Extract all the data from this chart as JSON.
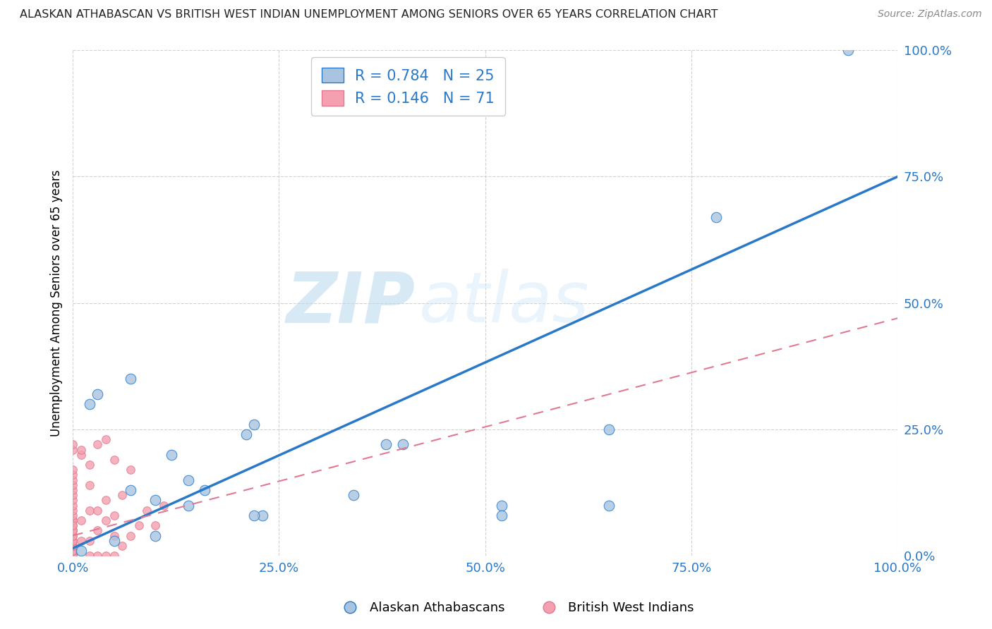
{
  "title": "ALASKAN ATHABASCAN VS BRITISH WEST INDIAN UNEMPLOYMENT AMONG SENIORS OVER 65 YEARS CORRELATION CHART",
  "source": "Source: ZipAtlas.com",
  "ylabel": "Unemployment Among Seniors over 65 years",
  "watermark_zip": "ZIP",
  "watermark_atlas": "atlas",
  "xlim": [
    0,
    1.0
  ],
  "ylim": [
    0,
    1.0
  ],
  "xticks": [
    0.0,
    0.25,
    0.5,
    0.75,
    1.0
  ],
  "yticks": [
    0.0,
    0.25,
    0.5,
    0.75,
    1.0
  ],
  "xticklabels": [
    "0.0%",
    "25.0%",
    "50.0%",
    "75.0%",
    "100.0%"
  ],
  "yticklabels": [
    "0.0%",
    "25.0%",
    "50.0%",
    "75.0%",
    "100.0%"
  ],
  "blue_R": "0.784",
  "blue_N": "25",
  "pink_R": "0.146",
  "pink_N": "71",
  "blue_color": "#a8c4e0",
  "pink_color": "#f4a0b0",
  "blue_line_color": "#2979c8",
  "pink_line_color": "#e07a90",
  "grid_color": "#cccccc",
  "background_color": "#ffffff",
  "blue_scatter_x": [
    0.94,
    0.78,
    0.02,
    0.03,
    0.07,
    0.14,
    0.14,
    0.21,
    0.22,
    0.23,
    0.38,
    0.4,
    0.52,
    0.52,
    0.05,
    0.07,
    0.1,
    0.1,
    0.12,
    0.16,
    0.22,
    0.34,
    0.65,
    0.65,
    0.01
  ],
  "blue_scatter_y": [
    1.0,
    0.67,
    0.3,
    0.32,
    0.35,
    0.1,
    0.15,
    0.24,
    0.26,
    0.08,
    0.22,
    0.22,
    0.1,
    0.08,
    0.03,
    0.13,
    0.11,
    0.04,
    0.2,
    0.13,
    0.08,
    0.12,
    0.25,
    0.1,
    0.01
  ],
  "pink_scatter_x": [
    0.0,
    0.0,
    0.0,
    0.0,
    0.0,
    0.0,
    0.0,
    0.0,
    0.0,
    0.0,
    0.0,
    0.0,
    0.0,
    0.0,
    0.0,
    0.0,
    0.0,
    0.0,
    0.0,
    0.0,
    0.0,
    0.0,
    0.0,
    0.0,
    0.0,
    0.0,
    0.0,
    0.0,
    0.0,
    0.0,
    0.0,
    0.0,
    0.0,
    0.0,
    0.0,
    0.0,
    0.0,
    0.0,
    0.0,
    0.0,
    0.0,
    0.0,
    0.01,
    0.01,
    0.01,
    0.01,
    0.02,
    0.02,
    0.02,
    0.02,
    0.02,
    0.03,
    0.03,
    0.03,
    0.03,
    0.04,
    0.04,
    0.04,
    0.04,
    0.05,
    0.05,
    0.05,
    0.05,
    0.06,
    0.06,
    0.07,
    0.07,
    0.08,
    0.09,
    0.1,
    0.11
  ],
  "pink_scatter_y": [
    0.0,
    0.0,
    0.0,
    0.0,
    0.0,
    0.0,
    0.0,
    0.0,
    0.0,
    0.0,
    0.0,
    0.01,
    0.01,
    0.01,
    0.01,
    0.02,
    0.02,
    0.02,
    0.03,
    0.03,
    0.03,
    0.04,
    0.04,
    0.05,
    0.05,
    0.06,
    0.07,
    0.07,
    0.08,
    0.09,
    0.1,
    0.11,
    0.12,
    0.13,
    0.14,
    0.15,
    0.16,
    0.17,
    0.05,
    0.06,
    0.21,
    0.22,
    0.03,
    0.07,
    0.2,
    0.21,
    0.0,
    0.03,
    0.09,
    0.14,
    0.18,
    0.0,
    0.05,
    0.09,
    0.22,
    0.0,
    0.07,
    0.11,
    0.23,
    0.0,
    0.04,
    0.08,
    0.19,
    0.02,
    0.12,
    0.04,
    0.17,
    0.06,
    0.09,
    0.06,
    0.1
  ],
  "blue_trend_x": [
    0.0,
    1.0
  ],
  "blue_trend_y": [
    0.015,
    0.75
  ],
  "pink_trend_x": [
    0.0,
    1.0
  ],
  "pink_trend_y": [
    0.04,
    0.47
  ],
  "marker_size_blue": 110,
  "marker_size_pink": 70
}
